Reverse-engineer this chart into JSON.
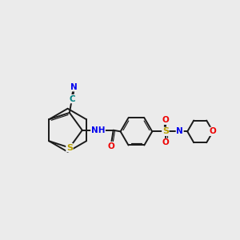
{
  "bg_color": "#ebebeb",
  "bond_color": "#1a1a1a",
  "colors": {
    "S": "#b8a000",
    "N": "#0000ee",
    "O": "#ee0000",
    "C_label": "#008080",
    "H": "#666666"
  }
}
